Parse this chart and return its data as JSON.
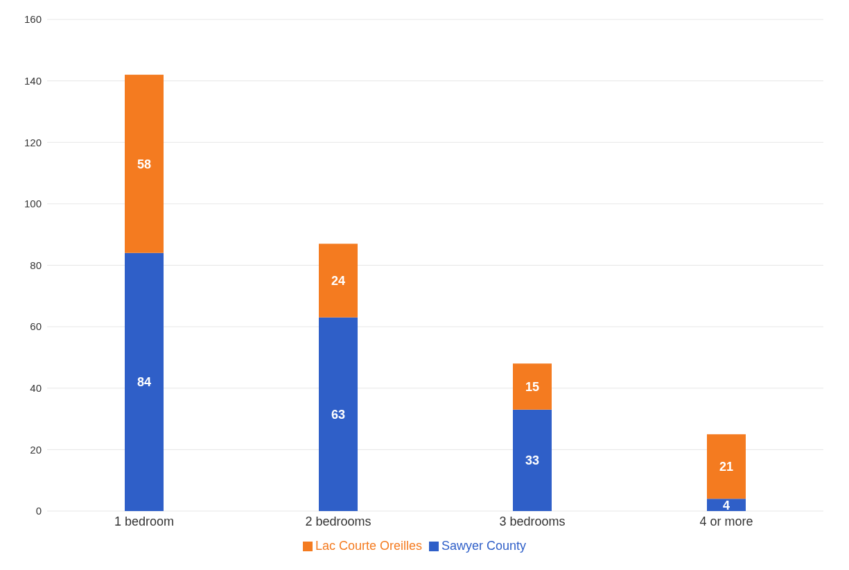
{
  "chart_data": {
    "type": "bar",
    "stacked": true,
    "categories": [
      "1 bedroom",
      "2 bedrooms",
      "3 bedrooms",
      "4 or more"
    ],
    "series": [
      {
        "name": "Sawyer County",
        "color": "#2f5fc8",
        "values": [
          84,
          63,
          33,
          4
        ]
      },
      {
        "name": "Lac Courte Oreilles",
        "color": "#f47b20",
        "values": [
          58,
          24,
          15,
          21
        ]
      }
    ],
    "ylim": [
      0,
      160
    ],
    "yticks": [
      0,
      20,
      40,
      60,
      80,
      100,
      120,
      140,
      160
    ],
    "grid": "y",
    "legend": "bottom",
    "data_labels": true
  }
}
